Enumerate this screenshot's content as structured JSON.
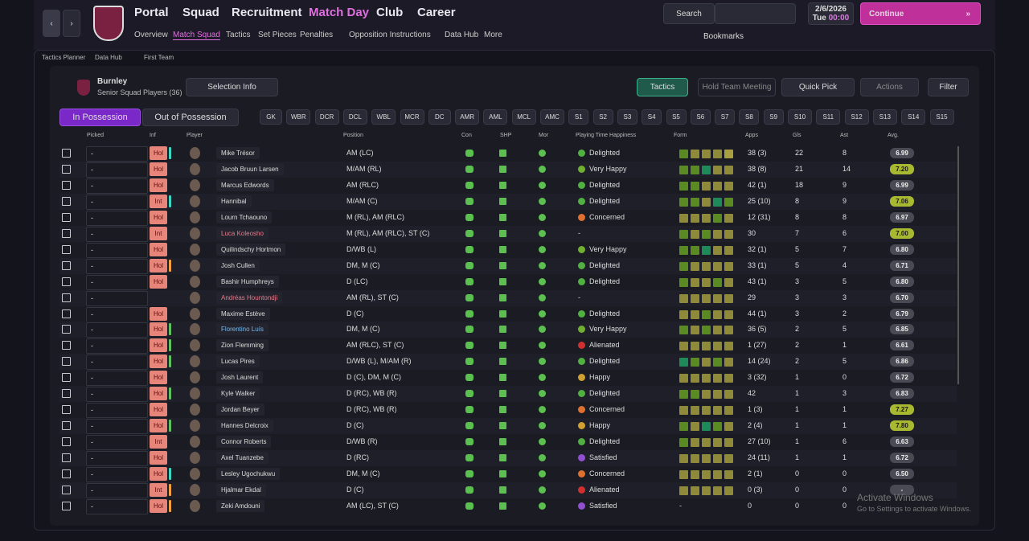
{
  "nav": {
    "items": [
      "Portal",
      "Squad",
      "Recruitment",
      "Match Day",
      "Club",
      "Career"
    ],
    "subitems": [
      "Overview",
      "Match Squad",
      "Tactics",
      "Set Pieces",
      "Penalties",
      "Opposition Instructions",
      "Data Hub",
      "More"
    ],
    "search": "Search",
    "date": "2/6/2026",
    "day": "Tue",
    "time": "00:00",
    "continue": "Continue",
    "bookmarks": "Bookmarks"
  },
  "breadcrumb": [
    "Tactics Planner",
    "Data Hub",
    "First Team"
  ],
  "header": {
    "club": "Burnley",
    "subtitle": "Senior Squad Players (36)",
    "selection": "Selection Info",
    "tactics": "Tactics",
    "meeting": "Hold Team Meeting",
    "quick": "Quick Pick",
    "actions": "Actions",
    "filter": "Filter"
  },
  "tabs": [
    "In Possession",
    "Out of Possession"
  ],
  "positions": [
    "GK",
    "WBR",
    "DCR",
    "DCL",
    "WBL",
    "MCR",
    "DC",
    "AMR",
    "AML",
    "MCL",
    "AMC",
    "S1",
    "S2",
    "S3",
    "S4",
    "S5",
    "S6",
    "S7",
    "S8",
    "S9",
    "S10",
    "S11",
    "S12",
    "S13",
    "S14",
    "S15"
  ],
  "columns": [
    "Picked",
    "Inf",
    "Player",
    "Position",
    "Con",
    "SHP",
    "Mor",
    "Playing Time Happiness",
    "Form",
    "Apps",
    "Gls",
    "Ast",
    "Avg."
  ],
  "rows": [
    {
      "picked": "-",
      "inf": "Hol",
      "bar": "#3dd6c0",
      "name": "Mike Trésor",
      "position": "AM (LC)",
      "pth": "Delighted",
      "form": [
        "#5a8a22",
        "#8f8a3a",
        "#8f8a3a",
        "#8f8a3a",
        "#a8a040"
      ],
      "apps": "38 (3)",
      "gls": 22,
      "ast": 8,
      "avg": "6.99"
    },
    {
      "picked": "-",
      "inf": "Hol",
      "name": "Jacob Bruun Larsen",
      "position": "M/AM (RL)",
      "pth": "Very Happy",
      "form": [
        "#5a8a22",
        "#5a8a22",
        "#1e8a5a",
        "#8f8a3a",
        "#8f8a3a"
      ],
      "apps": "38 (8)",
      "gls": 21,
      "ast": 14,
      "avg": "7.20"
    },
    {
      "picked": "-",
      "inf": "Hol",
      "name": "Marcus Edwords",
      "position": "AM (RLC)",
      "pth": "Delighted",
      "form": [
        "#5a8a22",
        "#5a8a22",
        "#8f8a3a",
        "#8f8a3a",
        "#8f8a3a"
      ],
      "apps": "42 (1)",
      "gls": 18,
      "ast": 9,
      "avg": "6.99"
    },
    {
      "picked": "-",
      "inf": "Int",
      "bar": "#3dd6c0",
      "name": "Hannibal",
      "position": "M/AM (C)",
      "pth": "Delighted",
      "form": [
        "#5a8a22",
        "#5a8a22",
        "#8f8a3a",
        "#1e8a5a",
        "#5a8a22"
      ],
      "apps": "25 (10)",
      "gls": 8,
      "ast": 9,
      "avg": "7.06"
    },
    {
      "picked": "-",
      "inf": "Hol",
      "name": "Lourn Tchaouno",
      "position": "M (RL), AM (RLC)",
      "pth": "Concerned",
      "form": [
        "#8f8a3a",
        "#8f8a3a",
        "#8f8a3a",
        "#5a8a22",
        "#8f8a3a"
      ],
      "apps": "12 (31)",
      "gls": 8,
      "ast": 8,
      "avg": "6.97"
    },
    {
      "picked": "-",
      "inf": "Int",
      "name": "Luca Koleosho",
      "name_color": "#e87a8a",
      "position": "M (RL), AM (RLC), ST (C)",
      "pth": "-",
      "form": [
        "#5a8a22",
        "#8f8a3a",
        "#5a8a22",
        "#8f8a3a",
        "#8f8a3a"
      ],
      "apps": "30",
      "gls": 7,
      "ast": 6,
      "avg": "7.00"
    },
    {
      "picked": "-",
      "inf": "Hol",
      "name": "Quilindschy Hortmon",
      "position": "D/WB (L)",
      "pth": "Very Happy",
      "form": [
        "#5a8a22",
        "#5a8a22",
        "#1e8a5a",
        "#8f8a3a",
        "#8f8a3a"
      ],
      "apps": "32 (1)",
      "gls": 5,
      "ast": 7,
      "avg": "6.80"
    },
    {
      "picked": "-",
      "inf": "Hol",
      "bar": "#f0a040",
      "name": "Josh Cullen",
      "position": "DM, M (C)",
      "pth": "Delighted",
      "form": [
        "#5a8a22",
        "#8f8a3a",
        "#8f8a3a",
        "#8f8a3a",
        "#8f8a3a"
      ],
      "apps": "33 (1)",
      "gls": 5,
      "ast": 4,
      "avg": "6.71"
    },
    {
      "picked": "-",
      "inf": "Hol",
      "name": "Bashir Humphreys",
      "position": "D (LC)",
      "pth": "Delighted",
      "form": [
        "#5a8a22",
        "#8f8a3a",
        "#8f8a3a",
        "#5a8a22",
        "#8f8a3a"
      ],
      "apps": "43 (1)",
      "gls": 3,
      "ast": 5,
      "avg": "6.80"
    },
    {
      "picked": "-",
      "inf": "",
      "name": "Andréas Hountondji",
      "name_color": "#e87a8a",
      "position": "AM (RL), ST (C)",
      "pth": "-",
      "form": [
        "#8f8a3a",
        "#8f8a3a",
        "#8f8a3a",
        "#8f8a3a",
        "#8f8a3a"
      ],
      "apps": "29",
      "gls": 3,
      "ast": 3,
      "avg": "6.70"
    },
    {
      "picked": "-",
      "inf": "Hol",
      "name": "Maxime Estève",
      "position": "D (C)",
      "pth": "Delighted",
      "form": [
        "#8f8a3a",
        "#8f8a3a",
        "#5a8a22",
        "#8f8a3a",
        "#8f8a3a"
      ],
      "apps": "44 (1)",
      "gls": 3,
      "ast": 2,
      "avg": "6.79"
    },
    {
      "picked": "-",
      "inf": "Hol",
      "bar": "#60c060",
      "name": "Florentino Luís",
      "name_color": "#7ab8e8",
      "position": "DM, M (C)",
      "pth": "Very Happy",
      "form": [
        "#5a8a22",
        "#8f8a3a",
        "#5a8a22",
        "#8f8a3a",
        "#8f8a3a"
      ],
      "apps": "36 (5)",
      "gls": 2,
      "ast": 5,
      "avg": "6.85"
    },
    {
      "picked": "-",
      "inf": "Hol",
      "bar": "#60c060",
      "name": "Zion Flemming",
      "position": "AM (RLC), ST (C)",
      "pth": "Alienated",
      "form": [
        "#8f8a3a",
        "#8f8a3a",
        "#8f8a3a",
        "#8f8a3a",
        "#8f8a3a"
      ],
      "apps": "1 (27)",
      "gls": 2,
      "ast": 1,
      "avg": "6.61"
    },
    {
      "picked": "-",
      "inf": "Hol",
      "bar": "#60c060",
      "name": "Lucas Pires",
      "position": "D/WB (L), M/AM (R)",
      "pth": "Delighted",
      "form": [
        "#1e8a5a",
        "#5a8a22",
        "#8f8a3a",
        "#5a8a22",
        "#8f8a3a"
      ],
      "apps": "14 (24)",
      "gls": 2,
      "ast": 5,
      "avg": "6.86"
    },
    {
      "picked": "-",
      "inf": "Hol",
      "name": "Josh Laurent",
      "position": "D (C), DM, M (C)",
      "pth": "Happy",
      "form": [
        "#8f8a3a",
        "#8f8a3a",
        "#8f8a3a",
        "#8f8a3a",
        "#8f8a3a"
      ],
      "apps": "3 (32)",
      "gls": 1,
      "ast": 0,
      "avg": "6.72"
    },
    {
      "picked": "-",
      "inf": "Hol",
      "bar": "#60c060",
      "name": "Kyle Walker",
      "position": "D (RC), WB (R)",
      "pth": "Delighted",
      "form": [
        "#5a8a22",
        "#5a8a22",
        "#8f8a3a",
        "#8f8a3a",
        "#8f8a3a"
      ],
      "apps": "42",
      "gls": 1,
      "ast": 3,
      "avg": "6.83"
    },
    {
      "picked": "-",
      "inf": "Hol",
      "name": "Jordan Beyer",
      "position": "D (RC), WB (R)",
      "pth": "Concerned",
      "form": [
        "#8f8a3a",
        "#8f8a3a",
        "#8f8a3a",
        "#8f8a3a",
        "#8f8a3a"
      ],
      "apps": "1 (3)",
      "gls": 1,
      "ast": 1,
      "avg": "7.27"
    },
    {
      "picked": "-",
      "inf": "Hol",
      "bar": "#60c060",
      "name": "Hannes Delcroix",
      "position": "D (C)",
      "pth": "Happy",
      "form": [
        "#5a8a22",
        "#8f8a3a",
        "#1e8a5a",
        "#5a8a22",
        "#8f8a3a"
      ],
      "apps": "2 (4)",
      "gls": 1,
      "ast": 1,
      "avg": "7.80"
    },
    {
      "picked": "-",
      "inf": "Int",
      "name": "Connor Roberts",
      "position": "D/WB (R)",
      "pth": "Delighted",
      "form": [
        "#5a8a22",
        "#8f8a3a",
        "#8f8a3a",
        "#8f8a3a",
        "#8f8a3a"
      ],
      "apps": "27 (10)",
      "gls": 1,
      "ast": 6,
      "avg": "6.63"
    },
    {
      "picked": "-",
      "inf": "Hol",
      "name": "Axel Tuanzebe",
      "position": "D (RC)",
      "pth": "Satisfied",
      "form": [
        "#8f8a3a",
        "#8f8a3a",
        "#8f8a3a",
        "#8f8a3a",
        "#8f8a3a"
      ],
      "apps": "24 (11)",
      "gls": 1,
      "ast": 1,
      "avg": "6.72"
    },
    {
      "picked": "-",
      "inf": "Hol",
      "bar": "#3dd6c0",
      "name": "Lesley Ugochukwu",
      "position": "DM, M (C)",
      "pth": "Concerned",
      "form": [
        "#8f8a3a",
        "#8f8a3a",
        "#8f8a3a",
        "#8f8a3a",
        "#8f8a3a"
      ],
      "apps": "2 (1)",
      "gls": 0,
      "ast": 0,
      "avg": "6.50"
    },
    {
      "picked": "-",
      "inf": "Int",
      "bar": "#f0a040",
      "name": "Hjalmar Ekdal",
      "position": "D (C)",
      "pth": "Alienated",
      "form": [
        "#8f8a3a",
        "#8f8a3a",
        "#8f8a3a",
        "#8f8a3a",
        "#8f8a3a"
      ],
      "apps": "0 (3)",
      "gls": 0,
      "ast": 0,
      "avg": "-"
    },
    {
      "picked": "-",
      "inf": "Hol",
      "bar": "#f0a040",
      "name": "Zeki Amdouni",
      "position": "AM (LC), ST (C)",
      "pth": "Satisfied",
      "form": "-",
      "apps": "0",
      "gls": 0,
      "ast": 0
    }
  ],
  "watermark": {
    "title": "Activate Windows",
    "text": "Go to Settings to activate Windows."
  }
}
